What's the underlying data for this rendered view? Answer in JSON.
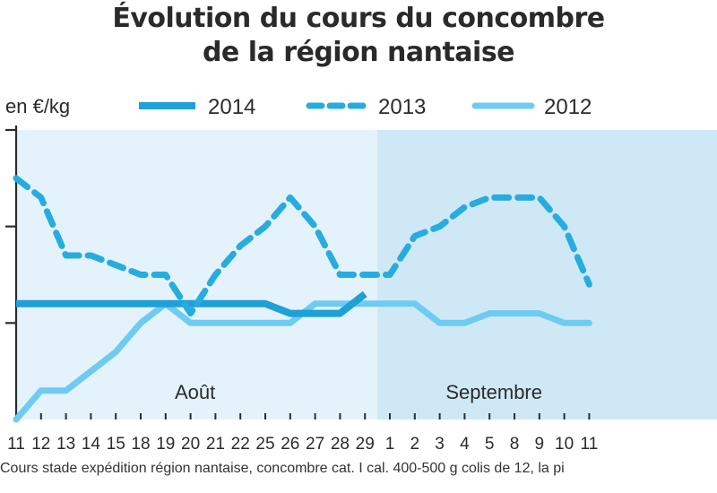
{
  "title_lines": [
    "Évolution du cours du concombre",
    "de la région nantaise"
  ],
  "footnote": "Cours stade expédition région nantaise, concombre cat. I cal. 400-500 g colis de 12, la pi",
  "colors": {
    "plot_bg_left": "#e4f3fb",
    "plot_bg_right": "#cfe8f6",
    "series_2014": "#1ea0d8",
    "series_2013": "#27ace0",
    "series_2012": "#6ecbf2",
    "axis": "#2b2b2b"
  },
  "chart_data": {
    "type": "line",
    "ylabel": "en €/kg",
    "y_ticks": 3,
    "ylim": [
      0,
      3
    ],
    "categories": [
      "11",
      "12",
      "13",
      "14",
      "15",
      "18",
      "19",
      "20",
      "21",
      "22",
      "25",
      "26",
      "27",
      "28",
      "29",
      "1",
      "2",
      "3",
      "4",
      "5",
      "8",
      "9",
      "10",
      "11"
    ],
    "month_labels": [
      {
        "label": "Août",
        "at_index": 7
      },
      {
        "label": "Septembre",
        "at_index": 19
      }
    ],
    "months_split_index": 15,
    "legend_position": "top",
    "series": [
      {
        "name": "2014",
        "style": "solid-thick",
        "values": [
          1.2,
          1.2,
          1.2,
          1.2,
          1.2,
          1.2,
          1.2,
          1.2,
          1.2,
          1.2,
          1.2,
          1.1,
          1.1,
          1.1,
          1.3,
          null,
          null,
          null,
          null,
          null,
          null,
          null,
          null,
          null
        ]
      },
      {
        "name": "2013",
        "style": "dashed",
        "values": [
          2.5,
          2.3,
          1.7,
          1.7,
          1.6,
          1.5,
          1.5,
          1.1,
          1.5,
          1.8,
          2.0,
          2.3,
          2.0,
          1.5,
          1.5,
          1.5,
          1.9,
          2.0,
          2.2,
          2.3,
          2.3,
          2.3,
          2.0,
          1.4
        ]
      },
      {
        "name": "2012",
        "style": "solid-light",
        "values": [
          0.0,
          0.3,
          0.3,
          0.5,
          0.7,
          1.0,
          1.2,
          1.0,
          1.0,
          1.0,
          1.0,
          1.0,
          1.2,
          1.2,
          1.2,
          1.2,
          1.2,
          1.0,
          1.0,
          1.1,
          1.1,
          1.1,
          1.0,
          1.0
        ]
      }
    ]
  }
}
